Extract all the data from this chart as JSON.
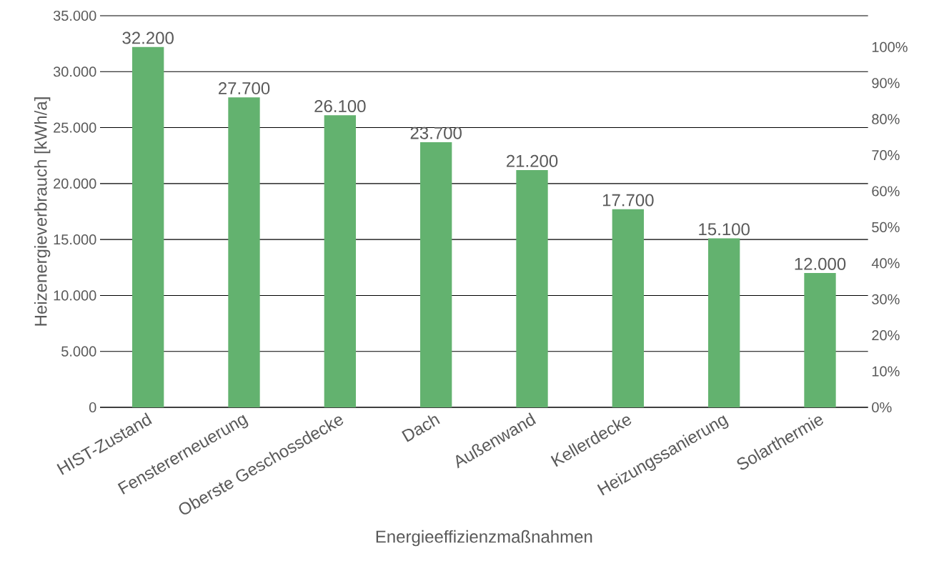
{
  "chart_data": {
    "type": "bar",
    "xlabel": "Energieeffizienzmaßnahmen",
    "ylabel": "Heizenergieverbrauch [kWh/a]",
    "categories": [
      "HIST-Zustand",
      "Fenstererneuerung",
      "Oberste Geschossdecke",
      "Dach",
      "Außenwand",
      "Kellerdecke",
      "Heizungssanierung",
      "Solarthermie"
    ],
    "values": [
      32200,
      27700,
      26100,
      23700,
      21200,
      17700,
      15100,
      12000
    ],
    "value_labels": [
      "32.200",
      "27.700",
      "26.100",
      "23.700",
      "21.200",
      "17.700",
      "15.100",
      "12.000"
    ],
    "color": "#63b26f",
    "ylim": [
      0,
      35000
    ],
    "yticks": [
      0,
      {
        "value": 5000,
        "label": "5.000"
      },
      {
        "value": 10000,
        "label": "10.000"
      },
      {
        "value": 15000,
        "label": "15.000"
      },
      {
        "value": 20000,
        "label": "20.000"
      },
      {
        "value": 25000,
        "label": "25.000"
      },
      {
        "value": 30000,
        "label": "30.000"
      },
      {
        "value": 35000,
        "label": "35.000"
      }
    ],
    "y2lim": [
      0,
      108.7
    ],
    "y2ticks": [
      {
        "value": 0,
        "label": "0%"
      },
      {
        "value": 10,
        "label": "10%"
      },
      {
        "value": 20,
        "label": "20%"
      },
      {
        "value": 30,
        "label": "30%"
      },
      {
        "value": 40,
        "label": "40%"
      },
      {
        "value": 50,
        "label": "50%"
      },
      {
        "value": 60,
        "label": "60%"
      },
      {
        "value": 70,
        "label": "70%"
      },
      {
        "value": 80,
        "label": "80%"
      },
      {
        "value": 90,
        "label": "90%"
      },
      {
        "value": 100,
        "label": "100%"
      }
    ],
    "grid": "y"
  }
}
